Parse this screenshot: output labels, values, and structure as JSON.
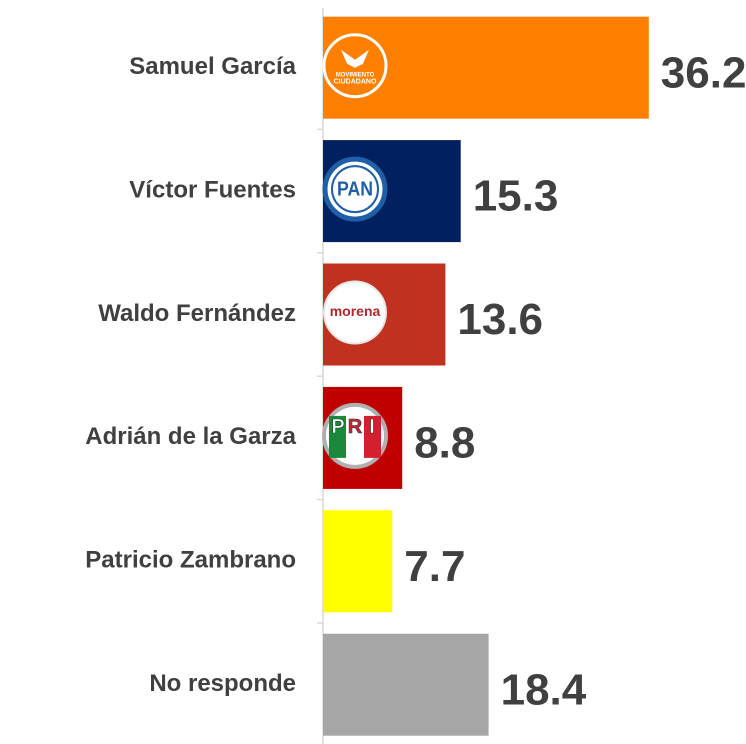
{
  "chart_data": {
    "type": "bar",
    "orientation": "horizontal",
    "categories": [
      "Samuel García",
      "Víctor Fuentes",
      "Waldo Fernández",
      "Adrián de la Garza",
      "Patricio Zambrano",
      "No responde"
    ],
    "values": [
      36.2,
      15.3,
      13.6,
      8.8,
      7.7,
      18.4
    ],
    "colors": [
      "#ff8000",
      "#002060",
      "#c0311f",
      "#c00000",
      "#ffff00",
      "#a6a6a6"
    ],
    "xlim": [
      0,
      46
    ],
    "logo_labels": [
      [
        "MOVIMIENTO",
        "CIUDADANO"
      ],
      [
        "PAN"
      ],
      [
        "morena"
      ],
      [
        "P",
        "R",
        "I"
      ]
    ]
  }
}
